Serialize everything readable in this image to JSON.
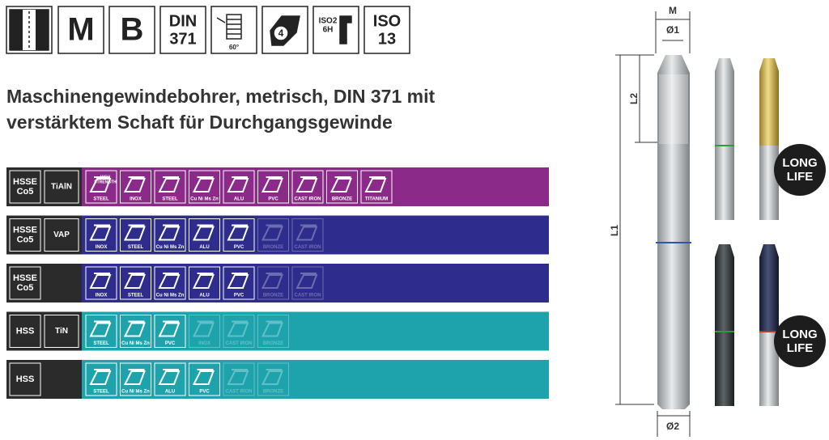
{
  "header": {
    "icons": {
      "m": "M",
      "b": "B",
      "din": [
        "DIN",
        "371"
      ],
      "thread": "60°",
      "hex": "4",
      "iso2": [
        "ISO2",
        "6H"
      ],
      "iso13": [
        "ISO",
        "13"
      ]
    },
    "title": [
      "Maschinengewindebohrer, metrisch, DIN 371 mit",
      "verstärktem Schaft für Durchgangsgewinde"
    ]
  },
  "rows": [
    {
      "material": [
        "HSSE",
        "Co5"
      ],
      "coating": "TiAlN",
      "color": "#8b2a88",
      "materials": [
        {
          "label": "STEEL",
          "sublabel": [
            "HIGH",
            "STRENGTH"
          ],
          "active": true
        },
        {
          "label": "INOX",
          "active": true
        },
        {
          "label": "STEEL",
          "active": true
        },
        {
          "label": "Cu Ni Ms Zn",
          "active": true
        },
        {
          "label": "ALU",
          "active": true
        },
        {
          "label": "PVC",
          "active": true
        },
        {
          "label": "CAST IRON",
          "active": true
        },
        {
          "label": "BRONZE",
          "active": true
        },
        {
          "label": "TITANIUM",
          "active": true
        }
      ]
    },
    {
      "material": [
        "HSSE",
        "Co5"
      ],
      "coating": "VAP",
      "color": "#2e2c8c",
      "materials": [
        {
          "label": "INOX",
          "active": true
        },
        {
          "label": "STEEL",
          "active": true
        },
        {
          "label": "Cu Ni Ms Zn",
          "active": true
        },
        {
          "label": "ALU",
          "active": true
        },
        {
          "label": "PVC",
          "active": true
        },
        {
          "label": "BRONZE",
          "active": false
        },
        {
          "label": "CAST IRON",
          "active": false
        }
      ]
    },
    {
      "material": [
        "HSSE",
        "Co5"
      ],
      "color": "#2e2c8c",
      "materials": [
        {
          "label": "INOX",
          "active": true
        },
        {
          "label": "STEEL",
          "active": true
        },
        {
          "label": "Cu Ni Ms Zn",
          "active": true
        },
        {
          "label": "ALU",
          "active": true
        },
        {
          "label": "PVC",
          "active": true
        },
        {
          "label": "BRONZE",
          "active": false
        },
        {
          "label": "CAST IRON",
          "active": false
        }
      ]
    },
    {
      "material": [
        "HSS"
      ],
      "coating": "TiN",
      "color": "#1ea3ad",
      "materials": [
        {
          "label": "STEEL",
          "active": true
        },
        {
          "label": "Cu Ni Ms Zn",
          "active": true
        },
        {
          "label": "PVC",
          "active": true
        },
        {
          "label": "INOX",
          "active": false
        },
        {
          "label": "CAST IRON",
          "active": false
        },
        {
          "label": "BRONZE",
          "active": false
        }
      ]
    },
    {
      "material": [
        "HSS"
      ],
      "color": "#1ea3ad",
      "materials": [
        {
          "label": "STEEL",
          "active": true
        },
        {
          "label": "Cu Ni Ms Zn",
          "active": true
        },
        {
          "label": "ALU",
          "active": true
        },
        {
          "label": "PVC",
          "active": true
        },
        {
          "label": "CAST IRON",
          "active": false
        },
        {
          "label": "BRONZE",
          "active": false
        }
      ]
    }
  ],
  "dimensions": {
    "m": "M",
    "d1": "Ø1",
    "l2": "L2",
    "l1": "L1",
    "d2": "Ø2"
  },
  "badges": [
    [
      "LONG",
      "LIFE"
    ],
    [
      "LONG",
      "LIFE"
    ]
  ]
}
